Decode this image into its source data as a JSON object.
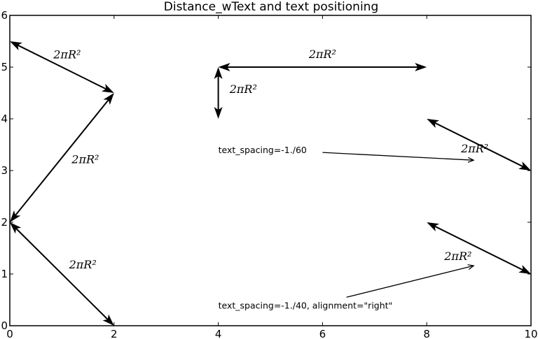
{
  "chart_data": {
    "type": "scatter",
    "title": "Distance_wText and text positioning",
    "xlim": [
      0,
      10
    ],
    "ylim": [
      0,
      6
    ],
    "xticks": [
      0,
      2,
      4,
      6,
      8,
      10
    ],
    "yticks": [
      0,
      1,
      2,
      3,
      4,
      5,
      6
    ],
    "grid": false,
    "distance_arrows": [
      {
        "from": [
          0,
          5.5
        ],
        "to": [
          2,
          4.5
        ],
        "label": "2πR²",
        "label_at": [
          1.1,
          5.25
        ]
      },
      {
        "from": [
          2,
          4.5
        ],
        "to": [
          0,
          2
        ],
        "label": "2πR²",
        "label_at": [
          1.45,
          3.22
        ]
      },
      {
        "from": [
          0,
          2
        ],
        "to": [
          2,
          0
        ],
        "label": "2πR²",
        "label_at": [
          1.4,
          1.19
        ]
      },
      {
        "from": [
          4,
          5
        ],
        "to": [
          8,
          5
        ],
        "label": "2πR²",
        "label_at": [
          6.0,
          5.26
        ]
      },
      {
        "from": [
          4,
          5
        ],
        "to": [
          4,
          4
        ],
        "label": "2πR²",
        "label_at": [
          4.48,
          4.58
        ]
      },
      {
        "from": [
          8,
          4
        ],
        "to": [
          10,
          3
        ],
        "label": "2πR²",
        "label_at": [
          8.92,
          3.43
        ]
      },
      {
        "from": [
          8,
          2
        ],
        "to": [
          10,
          1
        ],
        "label": "2πR²",
        "label_at": [
          8.6,
          1.35
        ]
      }
    ],
    "annotations": [
      {
        "text": "text_spacing=-1./60",
        "text_at": [
          4.0,
          3.34
        ],
        "arrow_from": [
          6.0,
          3.35
        ],
        "arrow_to": [
          8.9,
          3.2
        ]
      },
      {
        "text": "text_spacing=-1./40, alignment=\"right\"",
        "text_at": [
          4.0,
          0.33
        ],
        "arrow_from": [
          6.46,
          0.55
        ],
        "arrow_to": [
          8.9,
          1.16
        ]
      }
    ]
  }
}
